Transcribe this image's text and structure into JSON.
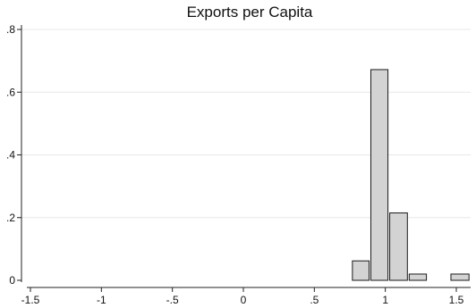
{
  "chart_data": {
    "type": "bar",
    "title": "Exports per Capita",
    "xlabel": "",
    "ylabel": "",
    "xlim": [
      -1.55,
      1.62
    ],
    "ylim": [
      0,
      0.8
    ],
    "x_ticks": [
      {
        "value": -1.5,
        "label": "-1.5"
      },
      {
        "value": -1,
        "label": "-1"
      },
      {
        "value": -0.5,
        "label": "-.5"
      },
      {
        "value": 0,
        "label": "0"
      },
      {
        "value": 0.5,
        "label": ".5"
      },
      {
        "value": 1,
        "label": "1"
      },
      {
        "value": 1.5,
        "label": "1.5"
      }
    ],
    "y_ticks": [
      {
        "value": 0,
        "label": "0"
      },
      {
        "value": 0.2,
        "label": ".2"
      },
      {
        "value": 0.4,
        "label": ".4"
      },
      {
        "value": 0.6,
        "label": ".6"
      },
      {
        "value": 0.8,
        "label": ".8"
      }
    ],
    "grid": true,
    "bins": [
      {
        "start": 0.768,
        "end": 0.898,
        "value": 0.062
      },
      {
        "start": 0.898,
        "end": 1.031,
        "value": 0.672
      },
      {
        "start": 1.031,
        "end": 1.168,
        "value": 0.215
      },
      {
        "start": 1.168,
        "end": 1.302,
        "value": 0.02
      },
      {
        "start": 1.462,
        "end": 1.602,
        "value": 0.02
      }
    ],
    "colors": {
      "bar_fill": "#d3d3d3",
      "bar_stroke": "#1a1a1a"
    }
  }
}
